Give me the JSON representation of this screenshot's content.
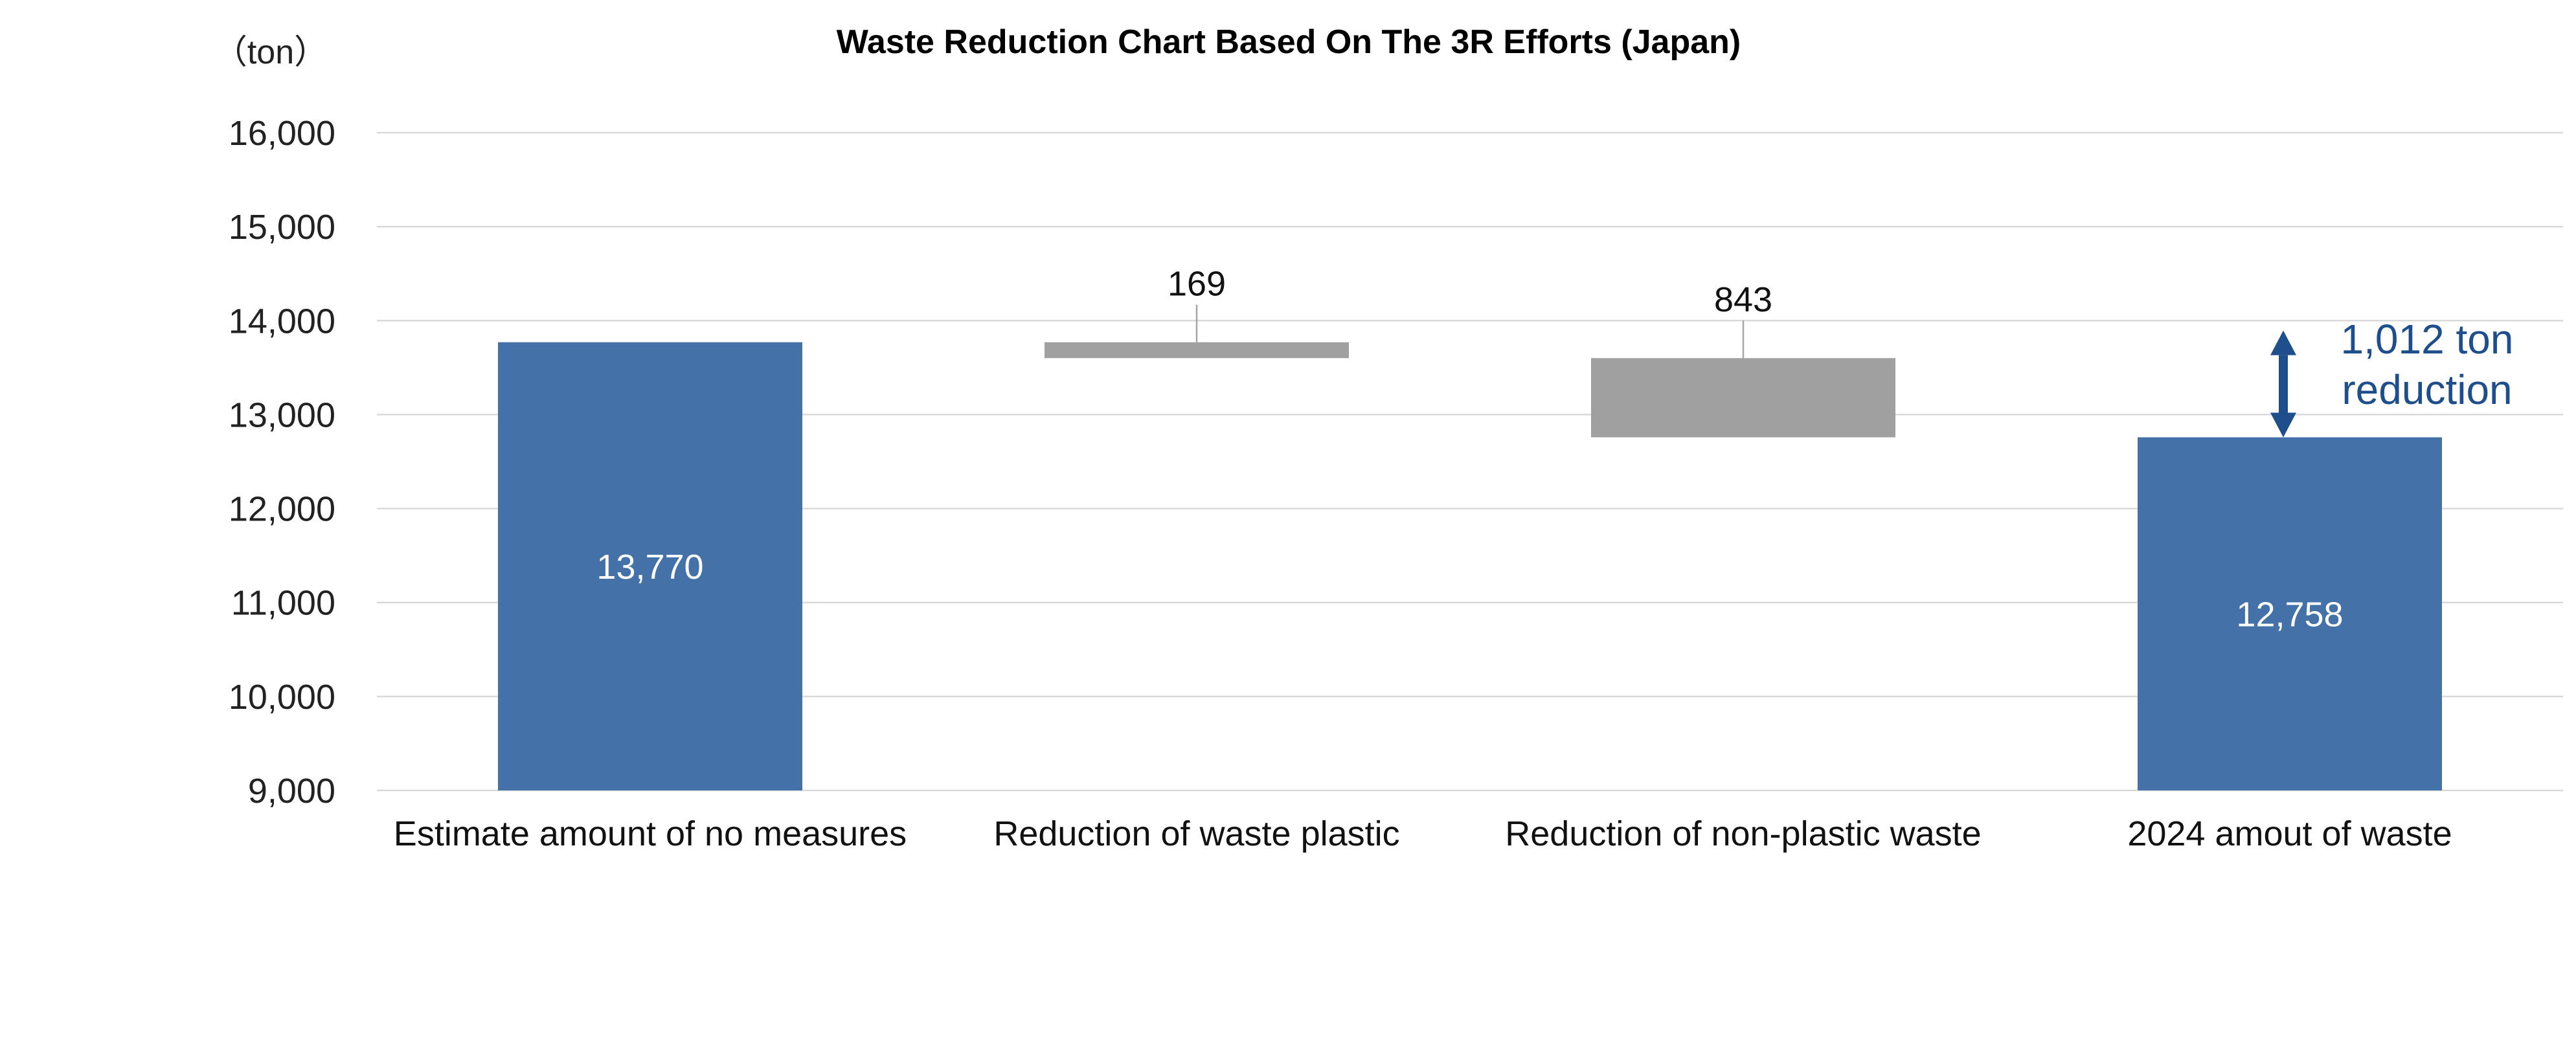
{
  "chart_data": {
    "type": "bar",
    "subtype": "waterfall",
    "title": "Waste Reduction Chart Based On The 3R Efforts (Japan)",
    "unit_label": "（ton）",
    "ylim": [
      9000,
      16000
    ],
    "yticks": [
      9000,
      10000,
      11000,
      12000,
      13000,
      14000,
      15000,
      16000
    ],
    "ytick_labels": [
      "9,000",
      "10,000",
      "11,000",
      "12,000",
      "13,000",
      "14,000",
      "15,000",
      "16,000"
    ],
    "grid": true,
    "categories": [
      "Estimate amount of no measures",
      "Reduction of waste plastic",
      "Reduction of non-plastic waste",
      "2024 amout of waste"
    ],
    "bars": [
      {
        "kind": "total",
        "start": 9000,
        "end": 13770,
        "label": "13,770",
        "label_position": "inside",
        "color": "#4472a8"
      },
      {
        "kind": "decrease",
        "start": 13770,
        "end": 13601,
        "label": "169",
        "label_position": "above",
        "color": "#a0a0a0"
      },
      {
        "kind": "decrease",
        "start": 13601,
        "end": 12758,
        "label": "843",
        "label_position": "above",
        "color": "#a0a0a0"
      },
      {
        "kind": "total",
        "start": 9000,
        "end": 12758,
        "label": "12,758",
        "label_position": "inside",
        "color": "#4472a8"
      }
    ],
    "annotation": {
      "lines": [
        "1,012 ton",
        "reduction"
      ],
      "from": 12758,
      "to": 13770,
      "color": "#1f4e8c"
    }
  }
}
